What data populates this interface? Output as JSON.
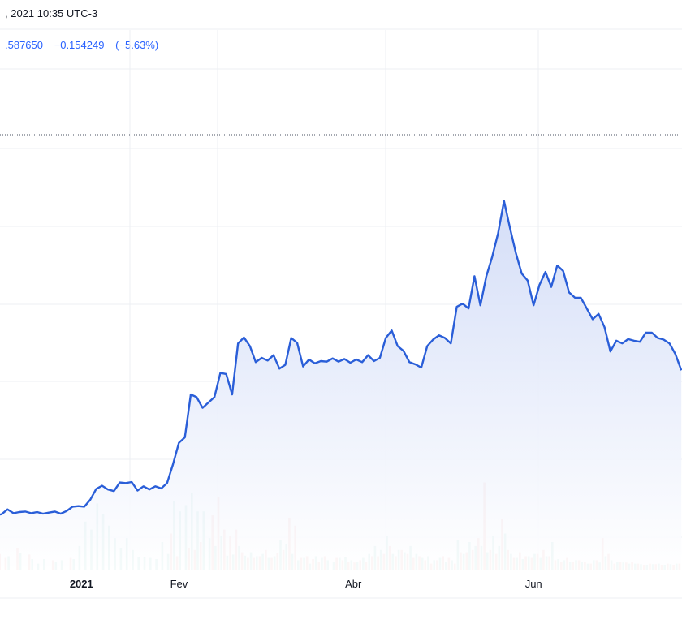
{
  "header": {
    "datetime": ", 2021 10:35 UTC-3",
    "price": ".587650",
    "change": "−0.154249",
    "change_pct": "(−5.63%)"
  },
  "colors": {
    "line": "#2a5ed8",
    "area_top": "#d2dcf7",
    "area_bottom": "#ffffff",
    "vol_up": "#8fd1c8",
    "vol_down": "#eea7a3",
    "grid": "#eceff3",
    "ref_line": "#4a5160",
    "axis_text": "#131722"
  },
  "chart_data": {
    "type": "area",
    "title": "",
    "xlabel": "",
    "ylabel": "",
    "x_ticks": [
      {
        "label": "2021",
        "x": 27,
        "bold": true
      },
      {
        "label": "Fev",
        "x": 60
      },
      {
        "label": "Abr",
        "x": 119
      },
      {
        "label": "Jun",
        "x": 180
      }
    ],
    "price_series": {
      "name": "",
      "points": [
        [
          -4,
          92.4
        ],
        [
          -2,
          92.5
        ],
        [
          0,
          92.7
        ],
        [
          2,
          93.6
        ],
        [
          4,
          92.9
        ],
        [
          6,
          93.1
        ],
        [
          8,
          93.2
        ],
        [
          10,
          92.9
        ],
        [
          12,
          93.1
        ],
        [
          14,
          92.8
        ],
        [
          16,
          93.0
        ],
        [
          18,
          93.2
        ],
        [
          20,
          92.8
        ],
        [
          22,
          93.3
        ],
        [
          24,
          94.1
        ],
        [
          26,
          94.2
        ],
        [
          28,
          94.1
        ],
        [
          30,
          95.4
        ],
        [
          32,
          97.4
        ],
        [
          34,
          98.0
        ],
        [
          36,
          97.3
        ],
        [
          38,
          97.0
        ],
        [
          40,
          98.6
        ],
        [
          42,
          98.5
        ],
        [
          44,
          98.7
        ],
        [
          46,
          97.1
        ],
        [
          48,
          97.9
        ],
        [
          50,
          97.3
        ],
        [
          52,
          97.9
        ],
        [
          54,
          97.5
        ],
        [
          56,
          98.5
        ],
        [
          58,
          102.0
        ],
        [
          60,
          106.0
        ],
        [
          62,
          107.0
        ],
        [
          64,
          115.0
        ],
        [
          66,
          114.5
        ],
        [
          68,
          112.5
        ],
        [
          70,
          113.5
        ],
        [
          72,
          114.5
        ],
        [
          74,
          119.0
        ],
        [
          76,
          118.8
        ],
        [
          78,
          115.0
        ],
        [
          80,
          124.5
        ],
        [
          82,
          125.6
        ],
        [
          84,
          124.0
        ],
        [
          86,
          121.0
        ],
        [
          88,
          121.8
        ],
        [
          90,
          121.3
        ],
        [
          92,
          122.3
        ],
        [
          94,
          119.8
        ],
        [
          96,
          120.5
        ],
        [
          98,
          125.5
        ],
        [
          100,
          124.6
        ],
        [
          102,
          120.2
        ],
        [
          104,
          121.5
        ],
        [
          106,
          120.8
        ],
        [
          108,
          121.2
        ],
        [
          110,
          121.1
        ],
        [
          112,
          121.7
        ],
        [
          114,
          121.1
        ],
        [
          116,
          121.6
        ],
        [
          118,
          120.9
        ],
        [
          120,
          121.5
        ],
        [
          122,
          121.0
        ],
        [
          124,
          122.3
        ],
        [
          126,
          121.2
        ],
        [
          128,
          121.8
        ],
        [
          130,
          125.5
        ],
        [
          132,
          126.9
        ],
        [
          134,
          124.0
        ],
        [
          136,
          123.1
        ],
        [
          138,
          121.0
        ],
        [
          140,
          120.6
        ],
        [
          142,
          120.0
        ],
        [
          144,
          124.0
        ],
        [
          146,
          125.2
        ],
        [
          148,
          126.0
        ],
        [
          150,
          125.5
        ],
        [
          152,
          124.5
        ],
        [
          154,
          131.3
        ],
        [
          156,
          131.9
        ],
        [
          158,
          131.0
        ],
        [
          160,
          137.0
        ],
        [
          162,
          131.6
        ],
        [
          164,
          137.0
        ],
        [
          166,
          140.6
        ],
        [
          168,
          145.0
        ],
        [
          170,
          151.0
        ],
        [
          172,
          146.0
        ],
        [
          174,
          141.3
        ],
        [
          176,
          137.5
        ],
        [
          178,
          136.2
        ],
        [
          180,
          131.6
        ],
        [
          182,
          135.4
        ],
        [
          184,
          137.8
        ],
        [
          186,
          135.0
        ],
        [
          188,
          139.0
        ],
        [
          190,
          138.0
        ],
        [
          192,
          134.0
        ],
        [
          194,
          133.0
        ],
        [
          196,
          133.0
        ],
        [
          198,
          131.0
        ],
        [
          200,
          129.0
        ],
        [
          202,
          130.0
        ],
        [
          204,
          127.5
        ],
        [
          206,
          123.0
        ],
        [
          208,
          125.0
        ],
        [
          210,
          124.5
        ],
        [
          212,
          125.3
        ],
        [
          214,
          125.0
        ],
        [
          216,
          124.8
        ],
        [
          218,
          126.5
        ],
        [
          220,
          126.5
        ],
        [
          222,
          125.5
        ],
        [
          224,
          125.2
        ],
        [
          226,
          124.5
        ],
        [
          228,
          122.5
        ],
        [
          230,
          119.5
        ]
      ]
    },
    "volume_series": {
      "name": "",
      "up": [
        [
          -4,
          3.2
        ],
        [
          2,
          2.5
        ],
        [
          6,
          3.0
        ],
        [
          10,
          2.0
        ],
        [
          12,
          1.2
        ],
        [
          14,
          2.0
        ],
        [
          18,
          1.5
        ],
        [
          20,
          1.8
        ],
        [
          24,
          2.0
        ],
        [
          26,
          4.3
        ],
        [
          28,
          8.6
        ],
        [
          30,
          7.2
        ],
        [
          32,
          11.8
        ],
        [
          34,
          10.0
        ],
        [
          36,
          7.9
        ],
        [
          38,
          5.7
        ],
        [
          40,
          4.0
        ],
        [
          42,
          5.7
        ],
        [
          44,
          3.6
        ],
        [
          46,
          2.4
        ],
        [
          48,
          2.4
        ],
        [
          50,
          2.2
        ],
        [
          52,
          2.0
        ],
        [
          54,
          5.0
        ],
        [
          56,
          2.9
        ],
        [
          58,
          12.2
        ],
        [
          60,
          10.4
        ],
        [
          62,
          11.5
        ],
        [
          64,
          13.6
        ],
        [
          66,
          10.4
        ],
        [
          68,
          10.4
        ],
        [
          70,
          5.7
        ],
        [
          72,
          4.3
        ],
        [
          74,
          6.1
        ],
        [
          76,
          2.6
        ],
        [
          78,
          2.8
        ],
        [
          80,
          4.3
        ],
        [
          82,
          2.6
        ],
        [
          84,
          3.2
        ],
        [
          86,
          2.5
        ],
        [
          88,
          2.9
        ],
        [
          90,
          2.2
        ],
        [
          92,
          2.5
        ],
        [
          94,
          5.4
        ],
        [
          96,
          4.7
        ],
        [
          98,
          2.9
        ],
        [
          100,
          1.8
        ],
        [
          102,
          2.2
        ],
        [
          104,
          1.2
        ],
        [
          106,
          2.5
        ],
        [
          108,
          2.2
        ],
        [
          110,
          1.8
        ],
        [
          112,
          1.5
        ],
        [
          114,
          2.2
        ],
        [
          116,
          2.4
        ],
        [
          118,
          1.8
        ],
        [
          120,
          1.5
        ],
        [
          122,
          2.2
        ],
        [
          124,
          2.9
        ],
        [
          126,
          4.3
        ],
        [
          128,
          3.6
        ],
        [
          130,
          6.1
        ],
        [
          132,
          2.9
        ],
        [
          134,
          3.6
        ],
        [
          136,
          3.2
        ],
        [
          138,
          4.3
        ],
        [
          140,
          2.9
        ],
        [
          142,
          2.2
        ],
        [
          144,
          2.5
        ],
        [
          146,
          1.8
        ],
        [
          148,
          2.2
        ],
        [
          150,
          1.5
        ],
        [
          152,
          1.8
        ],
        [
          154,
          5.4
        ],
        [
          156,
          2.9
        ],
        [
          158,
          5.0
        ],
        [
          160,
          4.3
        ],
        [
          162,
          4.3
        ],
        [
          164,
          3.2
        ],
        [
          166,
          6.1
        ],
        [
          168,
          4.3
        ],
        [
          170,
          6.5
        ],
        [
          172,
          2.9
        ],
        [
          174,
          2.2
        ],
        [
          176,
          2.0
        ],
        [
          178,
          2.5
        ],
        [
          180,
          2.9
        ],
        [
          182,
          2.2
        ],
        [
          184,
          2.5
        ],
        [
          186,
          5.0
        ],
        [
          188,
          2.0
        ],
        [
          190,
          1.8
        ],
        [
          192,
          1.5
        ],
        [
          194,
          1.8
        ],
        [
          196,
          1.5
        ],
        [
          198,
          1.2
        ],
        [
          200,
          1.8
        ],
        [
          202,
          1.4
        ],
        [
          204,
          2.5
        ],
        [
          206,
          1.8
        ],
        [
          208,
          1.5
        ],
        [
          210,
          1.4
        ],
        [
          212,
          1.2
        ],
        [
          214,
          1.2
        ],
        [
          216,
          1.1
        ],
        [
          218,
          1.0
        ],
        [
          220,
          1.1
        ],
        [
          222,
          1.2
        ],
        [
          224,
          1.0
        ],
        [
          226,
          1.1
        ],
        [
          228,
          1.2
        ]
      ],
      "down": [
        [
          -2,
          2.9
        ],
        [
          0,
          2.2
        ],
        [
          4,
          4.0
        ],
        [
          8,
          2.8
        ],
        [
          16,
          1.8
        ],
        [
          22,
          2.2
        ],
        [
          56,
          6.5
        ],
        [
          58,
          2.5
        ],
        [
          62,
          4.0
        ],
        [
          64,
          3.6
        ],
        [
          66,
          5.0
        ],
        [
          70,
          9.7
        ],
        [
          72,
          12.9
        ],
        [
          74,
          7.2
        ],
        [
          76,
          6.1
        ],
        [
          78,
          7.2
        ],
        [
          80,
          3.2
        ],
        [
          82,
          2.2
        ],
        [
          84,
          2.2
        ],
        [
          86,
          2.5
        ],
        [
          88,
          3.6
        ],
        [
          90,
          2.2
        ],
        [
          92,
          3.0
        ],
        [
          94,
          3.6
        ],
        [
          96,
          9.3
        ],
        [
          98,
          7.9
        ],
        [
          100,
          2.2
        ],
        [
          102,
          2.5
        ],
        [
          104,
          2.0
        ],
        [
          106,
          1.5
        ],
        [
          108,
          2.5
        ],
        [
          112,
          2.2
        ],
        [
          114,
          1.8
        ],
        [
          116,
          1.5
        ],
        [
          118,
          1.4
        ],
        [
          120,
          1.8
        ],
        [
          122,
          1.5
        ],
        [
          124,
          2.5
        ],
        [
          126,
          2.5
        ],
        [
          128,
          2.9
        ],
        [
          130,
          4.3
        ],
        [
          132,
          2.5
        ],
        [
          134,
          3.6
        ],
        [
          136,
          2.9
        ],
        [
          138,
          2.2
        ],
        [
          140,
          2.5
        ],
        [
          142,
          1.8
        ],
        [
          144,
          1.2
        ],
        [
          146,
          1.8
        ],
        [
          148,
          2.5
        ],
        [
          150,
          2.2
        ],
        [
          152,
          1.2
        ],
        [
          154,
          3.2
        ],
        [
          156,
          3.2
        ],
        [
          158,
          3.6
        ],
        [
          160,
          5.7
        ],
        [
          162,
          15.5
        ],
        [
          164,
          3.6
        ],
        [
          166,
          2.9
        ],
        [
          168,
          9.0
        ],
        [
          170,
          3.6
        ],
        [
          172,
          2.2
        ],
        [
          174,
          3.2
        ],
        [
          176,
          2.5
        ],
        [
          178,
          2.2
        ],
        [
          180,
          2.9
        ],
        [
          182,
          3.6
        ],
        [
          184,
          2.5
        ],
        [
          186,
          1.8
        ],
        [
          188,
          1.5
        ],
        [
          190,
          2.2
        ],
        [
          192,
          1.5
        ],
        [
          194,
          1.8
        ],
        [
          196,
          1.5
        ],
        [
          198,
          1.2
        ],
        [
          200,
          1.8
        ],
        [
          202,
          5.7
        ],
        [
          204,
          2.9
        ],
        [
          206,
          1.2
        ],
        [
          208,
          1.5
        ],
        [
          210,
          1.4
        ],
        [
          212,
          1.5
        ],
        [
          214,
          1.2
        ],
        [
          216,
          1.0
        ],
        [
          218,
          1.2
        ],
        [
          220,
          1.1
        ],
        [
          222,
          1.0
        ],
        [
          224,
          1.2
        ],
        [
          226,
          1.0
        ],
        [
          228,
          1.2
        ]
      ]
    }
  }
}
